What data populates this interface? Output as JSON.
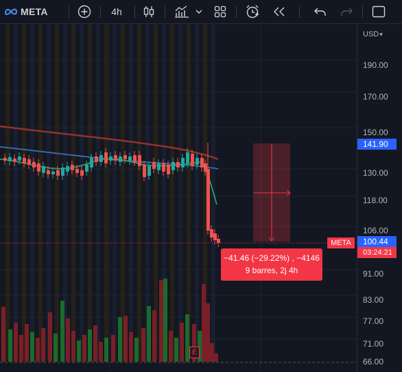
{
  "toolbar": {
    "symbol": "META",
    "interval": "4h"
  },
  "price_scale": {
    "currency": "USD",
    "ticks": [
      "190.00",
      "170.00",
      "150.00",
      "130.00",
      "118.00",
      "106.00",
      "91.00",
      "83.00",
      "77.00",
      "71.00",
      "66.00"
    ],
    "target_price": "141.90",
    "last_price": "100.44",
    "countdown": "03:24:21"
  },
  "symbol_tag": "META",
  "measure": {
    "line1": "−41.46 (−29.22%) , −4146",
    "line2": "9 barres, 2j 4h"
  },
  "earnings_marker": "E",
  "colors": {
    "up": "#26a69a",
    "down": "#ef5350",
    "accent": "#2962ff",
    "bg": "#131722"
  }
}
